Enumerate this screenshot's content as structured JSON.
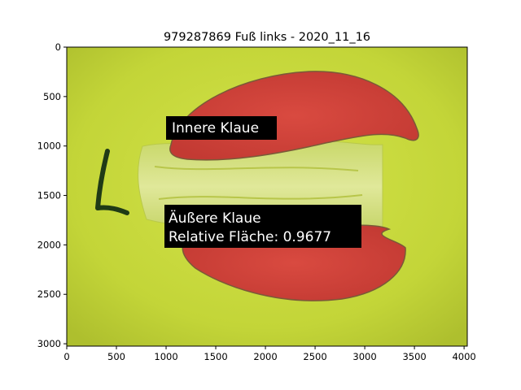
{
  "figure": {
    "title": "979287869 Fuß links - 2020_11_16",
    "annotations": {
      "inner": "Innere Klaue",
      "outer_line1": "Äußere Klaue",
      "outer_line2": "Relative Fläche: 0.9677"
    },
    "handwritten_mark": "L",
    "colors": {
      "background_pad": "#c7d93a",
      "claw_overlay": "#d9463e",
      "label_box": "#000000",
      "label_text": "#ffffff"
    }
  },
  "chart_data": {
    "type": "image",
    "title": "979287869 Fuß links - 2020_11_16",
    "xlim": [
      0,
      4032
    ],
    "ylim": [
      3024,
      0
    ],
    "x_ticks": [
      "0",
      "500",
      "1000",
      "1500",
      "2000",
      "2500",
      "3000",
      "3500",
      "4000"
    ],
    "y_ticks": [
      "0",
      "500",
      "1000",
      "1500",
      "2000",
      "2500",
      "3000"
    ],
    "annotations": [
      {
        "text": "Innere Klaue",
        "x": 1050,
        "y": 810
      },
      {
        "text": "Äußere Klaue\nRelative Fläche: 0.9677",
        "x": 1020,
        "y": 1720
      }
    ],
    "relative_area": 0.9677
  }
}
